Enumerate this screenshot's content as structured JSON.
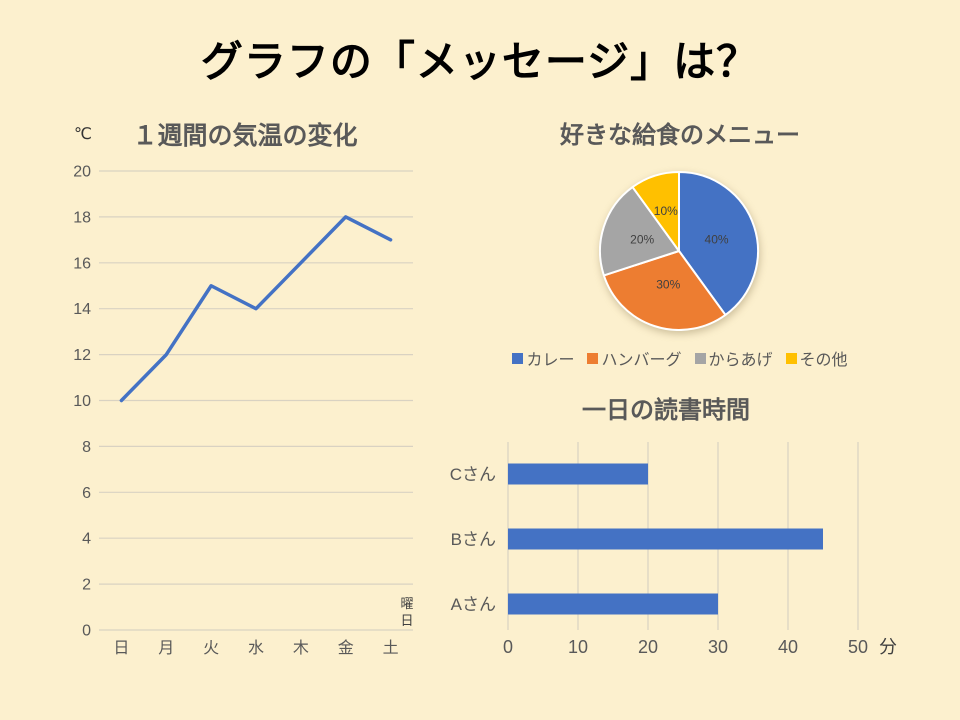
{
  "slide": {
    "title": "グラフの「メッセージ」は？",
    "background_color": "#FCF0CE"
  },
  "colors": {
    "blue": "#4472C4",
    "orange": "#ED7D31",
    "gray": "#A5A5A5",
    "yellow": "#FFC000",
    "title_text": "#000000",
    "chart_text": "#595959",
    "pie_label_text": "#404040",
    "grid": "#D9D2C2"
  },
  "chart_data": [
    {
      "id": "line",
      "type": "line",
      "title": "１週間の気温の変化",
      "unit_label": "℃",
      "x_axis_title": "曜日",
      "categories": [
        "日",
        "月",
        "火",
        "水",
        "木",
        "金",
        "土"
      ],
      "values": [
        10,
        12,
        15,
        14,
        16,
        18,
        17
      ],
      "yticks": [
        0,
        2,
        4,
        6,
        8,
        10,
        12,
        14,
        16,
        18,
        20
      ],
      "ylim": [
        0,
        20
      ],
      "line_color": "#4472C4",
      "grid": true,
      "legend_position": "none"
    },
    {
      "id": "pie",
      "type": "pie",
      "title": "好きな給食のメニュー",
      "slices": [
        {
          "label": "カレー",
          "value": 40,
          "pct_label": "40%",
          "color": "#4472C4"
        },
        {
          "label": "ハンバーグ",
          "value": 30,
          "pct_label": "30%",
          "color": "#ED7D31"
        },
        {
          "label": "からあげ",
          "value": 20,
          "pct_label": "20%",
          "color": "#A5A5A5"
        },
        {
          "label": "その他",
          "value": 10,
          "pct_label": "10%",
          "color": "#FFC000"
        }
      ],
      "start_angle_deg": 0,
      "direction": "clockwise",
      "legend_position": "bottom"
    },
    {
      "id": "bar",
      "type": "bar",
      "orientation": "horizontal",
      "title": "一日の読書時間",
      "categories": [
        "Cさん",
        "Bさん",
        "Aさん"
      ],
      "values": [
        20,
        45,
        30
      ],
      "xticks": [
        0,
        10,
        20,
        30,
        40,
        50
      ],
      "xlim": [
        0,
        50
      ],
      "unit_label": "分",
      "bar_color": "#4472C4",
      "grid": true,
      "legend_position": "none"
    }
  ]
}
